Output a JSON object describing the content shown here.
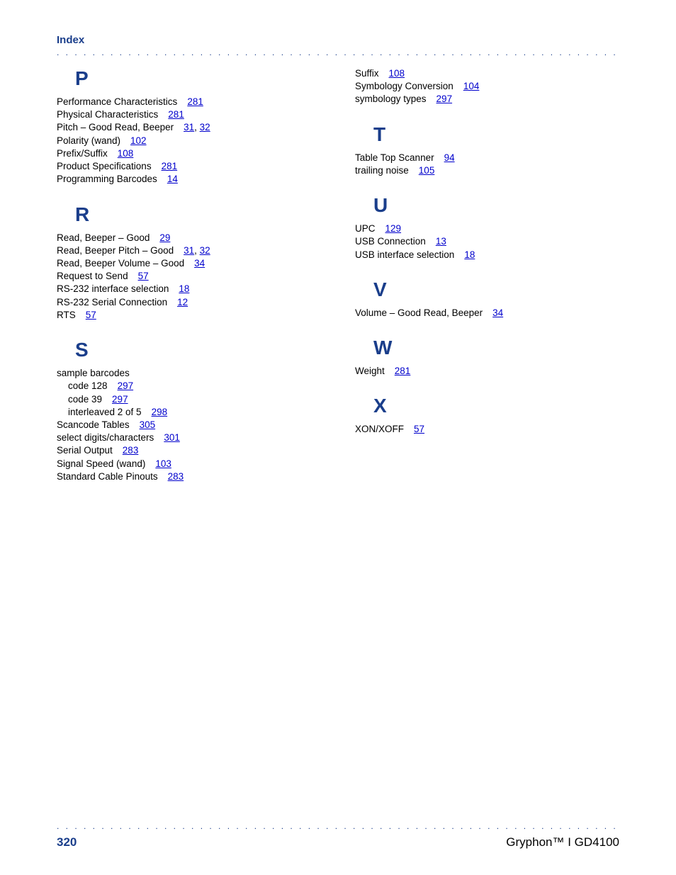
{
  "header_title": "Index",
  "dots": ". . . . . . . . . . . . . . . . . . . . . . . . . . . . . . . . . . . . . . . . . . . . . . . . . . . . . . . . . . . . . . . . . . . . . . . . . . . . . . . . . . . . . . . . . . . . . . . . . . . . . . . . . . . . . . . . . . . . . . . .",
  "page_number": "320",
  "product_name": "Gryphon™ I GD4100",
  "left_sections": [
    {
      "letter": "P",
      "entries": [
        {
          "label": "Performance Characteristics",
          "pages": [
            "281"
          ]
        },
        {
          "label": "Physical Characteristics",
          "pages": [
            "281"
          ]
        },
        {
          "label": "Pitch – Good Read, Beeper",
          "pages": [
            "31",
            "32"
          ]
        },
        {
          "label": "Polarity (wand)",
          "pages": [
            "102"
          ]
        },
        {
          "label": "Prefix/Suffix",
          "pages": [
            "108"
          ]
        },
        {
          "label": "Product Specifications",
          "pages": [
            "281"
          ]
        },
        {
          "label": "Programming Barcodes",
          "pages": [
            "14"
          ]
        }
      ]
    },
    {
      "letter": "R",
      "entries": [
        {
          "label": "Read, Beeper – Good",
          "pages": [
            "29"
          ]
        },
        {
          "label": "Read, Beeper Pitch – Good",
          "pages": [
            "31",
            "32"
          ]
        },
        {
          "label": "Read, Beeper Volume – Good",
          "pages": [
            "34"
          ]
        },
        {
          "label": "Request to Send",
          "pages": [
            "57"
          ]
        },
        {
          "label": "RS-232 interface selection",
          "pages": [
            "18"
          ]
        },
        {
          "label": "RS-232 Serial Connection",
          "pages": [
            "12"
          ]
        },
        {
          "label": "RTS",
          "pages": [
            "57"
          ]
        }
      ]
    },
    {
      "letter": "S",
      "entries": [
        {
          "label": "sample barcodes",
          "pages": []
        },
        {
          "label": "code 128",
          "pages": [
            "297"
          ],
          "sub": true
        },
        {
          "label": "code 39",
          "pages": [
            "297"
          ],
          "sub": true
        },
        {
          "label": "interleaved 2 of 5",
          "pages": [
            "298"
          ],
          "sub": true
        },
        {
          "label": "Scancode Tables",
          "pages": [
            "305"
          ]
        },
        {
          "label": "select digits/characters",
          "pages": [
            "301"
          ]
        },
        {
          "label": "Serial Output",
          "pages": [
            "283"
          ]
        },
        {
          "label": "Signal Speed (wand)",
          "pages": [
            "103"
          ]
        },
        {
          "label": "Standard Cable Pinouts",
          "pages": [
            "283"
          ]
        }
      ]
    }
  ],
  "right_sections": [
    {
      "letter": "",
      "entries": [
        {
          "label": "Suffix",
          "pages": [
            "108"
          ]
        },
        {
          "label": "Symbology Conversion",
          "pages": [
            "104"
          ]
        },
        {
          "label": "symbology types",
          "pages": [
            "297"
          ]
        }
      ]
    },
    {
      "letter": "T",
      "entries": [
        {
          "label": "Table Top Scanner",
          "pages": [
            "94"
          ]
        },
        {
          "label": "trailing noise",
          "pages": [
            "105"
          ]
        }
      ]
    },
    {
      "letter": "U",
      "entries": [
        {
          "label": "UPC",
          "pages": [
            "129"
          ]
        },
        {
          "label": "USB Connection",
          "pages": [
            "13"
          ]
        },
        {
          "label": "USB interface selection",
          "pages": [
            "18"
          ]
        }
      ]
    },
    {
      "letter": "V",
      "entries": [
        {
          "label": "Volume – Good Read, Beeper",
          "pages": [
            "34"
          ]
        }
      ]
    },
    {
      "letter": "W",
      "entries": [
        {
          "label": "Weight",
          "pages": [
            "281"
          ]
        }
      ]
    },
    {
      "letter": "X",
      "entries": [
        {
          "label": "XON/XOFF",
          "pages": [
            "57"
          ]
        }
      ]
    }
  ]
}
